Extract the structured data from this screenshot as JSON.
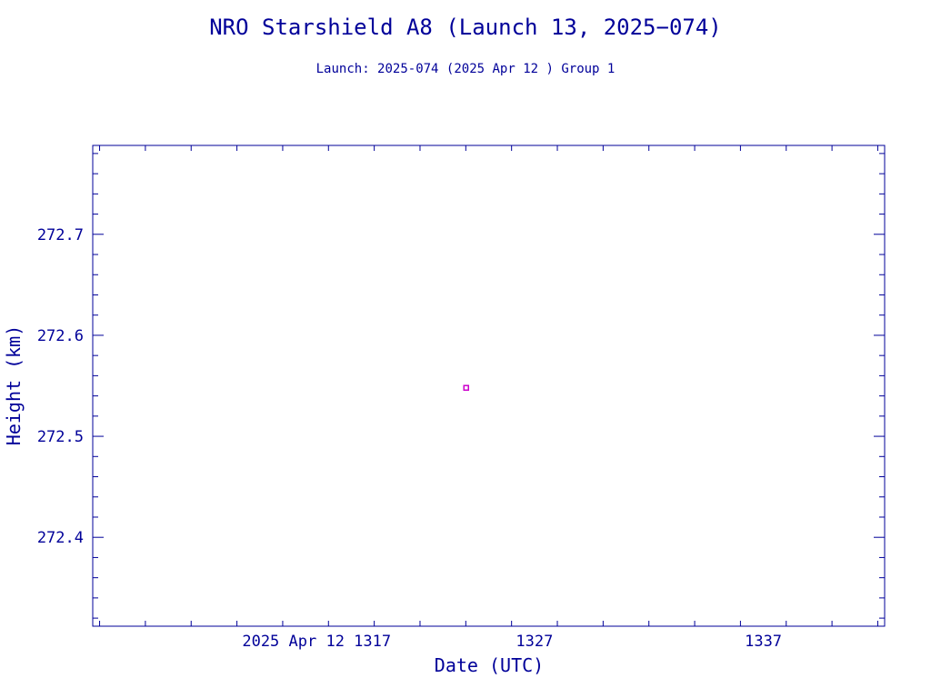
{
  "chart_data": {
    "type": "scatter",
    "title": "NRO Starshield A8 (Launch 13, 2025−074)",
    "subtitle": "Launch: 2025-074  (2025 Apr 12 )  Group 1",
    "xlabel": "Date (UTC)",
    "ylabel": "Height (km)",
    "x_ticks": [
      "2025 Apr 12  1317",
      "1327",
      "1337"
    ],
    "x_tick_values": [
      "2025-04-12T13:17",
      "2025-04-12T13:27",
      "2025-04-12T13:37"
    ],
    "xlim": [
      "2025-04-12T13:07:42",
      "2025-04-12T13:42:18"
    ],
    "y_ticks": [
      "272.4",
      "272.5",
      "272.6",
      "272.7"
    ],
    "ylim": [
      272.312,
      272.788
    ],
    "points": [
      {
        "x": "2025-04-12T13:24:01",
        "y": 272.548
      }
    ],
    "grid": false
  },
  "colors": {
    "axis": "#000099",
    "text": "#000099",
    "point": "#cc00cc"
  }
}
